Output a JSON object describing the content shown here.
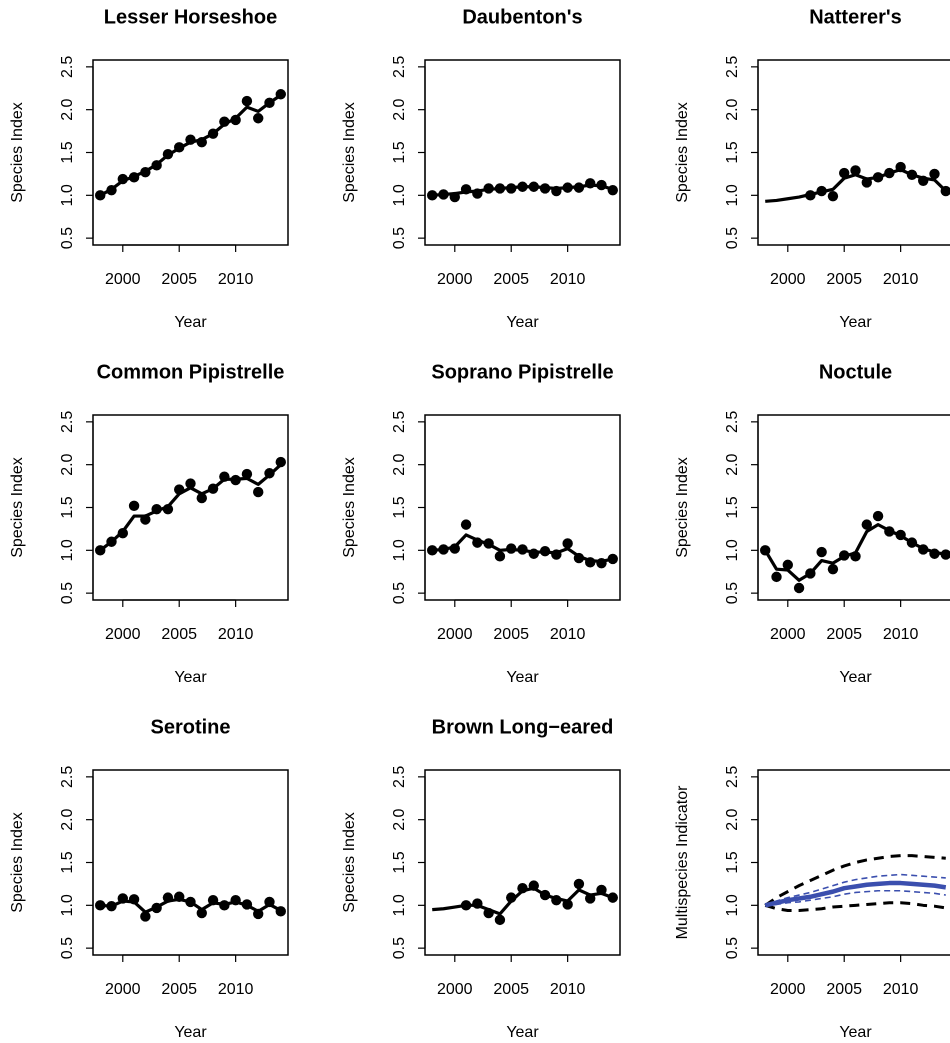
{
  "chart_data": [
    {
      "type": "line",
      "title": "Lesser Horseshoe",
      "x_label": "Year",
      "y_label": "Species Index",
      "x": [
        1998,
        1999,
        2000,
        2001,
        2002,
        2003,
        2004,
        2005,
        2006,
        2007,
        2008,
        2009,
        2010,
        2011,
        2012,
        2013,
        2014
      ],
      "xlim": [
        1997.36,
        2014.64
      ],
      "xticks": [
        2000,
        2005,
        2010
      ],
      "ylim": [
        0.42,
        2.58
      ],
      "yticks": [
        0.5,
        {
          "value": 1,
          "label": "1.0"
        },
        1.5,
        {
          "value": 2,
          "label": "2.0"
        },
        2.5
      ],
      "series": [
        {
          "style": "points",
          "color": "#000000",
          "values": [
            1.0,
            1.06,
            1.19,
            1.21,
            1.27,
            1.35,
            1.48,
            1.56,
            1.65,
            1.62,
            1.72,
            1.86,
            1.88,
            2.1,
            1.9,
            2.08,
            2.18
          ]
        },
        {
          "style": "line",
          "color": "#000000",
          "values": [
            1.0,
            1.07,
            1.17,
            1.22,
            1.28,
            1.36,
            1.47,
            1.55,
            1.62,
            1.65,
            1.72,
            1.83,
            1.9,
            2.03,
            1.98,
            2.08,
            2.17
          ]
        }
      ]
    },
    {
      "type": "line",
      "title": "Daubenton's",
      "x_label": "Year",
      "y_label": "Species Index",
      "x": [
        1998,
        1999,
        2000,
        2001,
        2002,
        2003,
        2004,
        2005,
        2006,
        2007,
        2008,
        2009,
        2010,
        2011,
        2012,
        2013,
        2014
      ],
      "xlim": [
        1997.36,
        2014.64
      ],
      "xticks": [
        2000,
        2005,
        2010
      ],
      "ylim": [
        0.42,
        2.58
      ],
      "yticks": [
        0.5,
        {
          "value": 1,
          "label": "1.0"
        },
        1.5,
        {
          "value": 2,
          "label": "2.0"
        },
        2.5
      ],
      "series": [
        {
          "style": "points",
          "color": "#000000",
          "values": [
            1.0,
            1.01,
            0.98,
            1.07,
            1.02,
            1.08,
            1.08,
            1.08,
            1.1,
            1.1,
            1.08,
            1.05,
            1.09,
            1.09,
            1.14,
            1.12,
            1.06
          ]
        },
        {
          "style": "line",
          "color": "#000000",
          "values": [
            1.0,
            1.01,
            1.02,
            1.04,
            1.05,
            1.07,
            1.08,
            1.09,
            1.1,
            1.1,
            1.09,
            1.08,
            1.09,
            1.1,
            1.12,
            1.11,
            1.07
          ]
        }
      ]
    },
    {
      "type": "line",
      "title": "Natterer's",
      "x_label": "Year",
      "y_label": "Species Index",
      "x": [
        1998,
        1999,
        2000,
        2001,
        2002,
        2003,
        2004,
        2005,
        2006,
        2007,
        2008,
        2009,
        2010,
        2011,
        2012,
        2013,
        2014
      ],
      "xlim": [
        1997.36,
        2014.64
      ],
      "xticks": [
        2000,
        2005,
        2010
      ],
      "ylim": [
        0.42,
        2.58
      ],
      "yticks": [
        0.5,
        {
          "value": 1,
          "label": "1.0"
        },
        1.5,
        {
          "value": 2,
          "label": "2.0"
        },
        2.5
      ],
      "series": [
        {
          "style": "points",
          "color": "#000000",
          "values": [
            null,
            null,
            null,
            null,
            1.0,
            1.05,
            0.99,
            1.26,
            1.29,
            1.15,
            1.21,
            1.26,
            1.33,
            1.24,
            1.17,
            1.25,
            1.05
          ]
        },
        {
          "style": "line",
          "color": "#000000",
          "values": [
            0.93,
            0.94,
            0.96,
            0.98,
            1.01,
            1.04,
            1.07,
            1.2,
            1.24,
            1.19,
            1.21,
            1.26,
            1.3,
            1.24,
            1.2,
            1.18,
            1.05
          ]
        }
      ]
    },
    {
      "type": "line",
      "title": "Common Pipistrelle",
      "x_label": "Year",
      "y_label": "Species Index",
      "x": [
        1998,
        1999,
        2000,
        2001,
        2002,
        2003,
        2004,
        2005,
        2006,
        2007,
        2008,
        2009,
        2010,
        2011,
        2012,
        2013,
        2014
      ],
      "xlim": [
        1997.36,
        2014.64
      ],
      "xticks": [
        2000,
        2005,
        2010
      ],
      "ylim": [
        0.42,
        2.58
      ],
      "yticks": [
        0.5,
        {
          "value": 1,
          "label": "1.0"
        },
        1.5,
        {
          "value": 2,
          "label": "2.0"
        },
        2.5
      ],
      "series": [
        {
          "style": "points",
          "color": "#000000",
          "values": [
            1.0,
            1.1,
            1.2,
            1.52,
            1.36,
            1.48,
            1.48,
            1.71,
            1.78,
            1.61,
            1.72,
            1.86,
            1.82,
            1.89,
            1.68,
            1.9,
            2.03
          ]
        },
        {
          "style": "line",
          "color": "#000000",
          "values": [
            1.0,
            1.1,
            1.22,
            1.4,
            1.4,
            1.46,
            1.51,
            1.66,
            1.73,
            1.66,
            1.72,
            1.83,
            1.83,
            1.84,
            1.77,
            1.88,
            2.0
          ]
        }
      ]
    },
    {
      "type": "line",
      "title": "Soprano Pipistrelle",
      "x_label": "Year",
      "y_label": "Species Index",
      "x": [
        1998,
        1999,
        2000,
        2001,
        2002,
        2003,
        2004,
        2005,
        2006,
        2007,
        2008,
        2009,
        2010,
        2011,
        2012,
        2013,
        2014
      ],
      "xlim": [
        1997.36,
        2014.64
      ],
      "xticks": [
        2000,
        2005,
        2010
      ],
      "ylim": [
        0.42,
        2.58
      ],
      "yticks": [
        0.5,
        {
          "value": 1,
          "label": "1.0"
        },
        1.5,
        {
          "value": 2,
          "label": "2.0"
        },
        2.5
      ],
      "series": [
        {
          "style": "points",
          "color": "#000000",
          "values": [
            1.0,
            1.01,
            1.02,
            1.3,
            1.09,
            1.08,
            0.93,
            1.02,
            1.01,
            0.96,
            0.99,
            0.95,
            1.08,
            0.91,
            0.86,
            0.85,
            0.9
          ]
        },
        {
          "style": "line",
          "color": "#000000",
          "values": [
            1.0,
            1.01,
            1.04,
            1.18,
            1.12,
            1.07,
            1.0,
            1.01,
            1.0,
            0.98,
            0.98,
            0.97,
            1.02,
            0.93,
            0.88,
            0.87,
            0.9
          ]
        }
      ]
    },
    {
      "type": "line",
      "title": "Noctule",
      "x_label": "Year",
      "y_label": "Species Index",
      "x": [
        1998,
        1999,
        2000,
        2001,
        2002,
        2003,
        2004,
        2005,
        2006,
        2007,
        2008,
        2009,
        2010,
        2011,
        2012,
        2013,
        2014
      ],
      "xlim": [
        1997.36,
        2014.64
      ],
      "xticks": [
        2000,
        2005,
        2010
      ],
      "ylim": [
        0.42,
        2.58
      ],
      "yticks": [
        0.5,
        {
          "value": 1,
          "label": "1.0"
        },
        1.5,
        {
          "value": 2,
          "label": "2.0"
        },
        2.5
      ],
      "series": [
        {
          "style": "points",
          "color": "#000000",
          "values": [
            1.0,
            0.69,
            0.83,
            0.56,
            0.73,
            0.98,
            0.78,
            0.94,
            0.93,
            1.3,
            1.4,
            1.22,
            1.18,
            1.09,
            1.01,
            0.96,
            0.95
          ]
        },
        {
          "style": "line",
          "color": "#000000",
          "values": [
            1.0,
            0.78,
            0.77,
            0.65,
            0.73,
            0.88,
            0.85,
            0.93,
            0.97,
            1.22,
            1.3,
            1.23,
            1.17,
            1.09,
            1.02,
            0.98,
            0.95
          ]
        }
      ]
    },
    {
      "type": "line",
      "title": "Serotine",
      "x_label": "Year",
      "y_label": "Species Index",
      "x": [
        1998,
        1999,
        2000,
        2001,
        2002,
        2003,
        2004,
        2005,
        2006,
        2007,
        2008,
        2009,
        2010,
        2011,
        2012,
        2013,
        2014
      ],
      "xlim": [
        1997.36,
        2014.64
      ],
      "xticks": [
        2000,
        2005,
        2010
      ],
      "ylim": [
        0.42,
        2.58
      ],
      "yticks": [
        0.5,
        {
          "value": 1,
          "label": "1.0"
        },
        1.5,
        {
          "value": 2,
          "label": "2.0"
        },
        2.5
      ],
      "series": [
        {
          "style": "points",
          "color": "#000000",
          "values": [
            1.0,
            0.99,
            1.08,
            1.07,
            0.87,
            0.97,
            1.09,
            1.1,
            1.04,
            0.91,
            1.06,
            1.0,
            1.06,
            1.01,
            0.9,
            1.04,
            0.93
          ]
        },
        {
          "style": "line",
          "color": "#000000",
          "values": [
            1.0,
            0.99,
            1.05,
            1.04,
            0.92,
            0.98,
            1.05,
            1.07,
            1.04,
            0.95,
            1.03,
            1.01,
            1.04,
            1.0,
            0.93,
            1.01,
            0.94
          ]
        }
      ]
    },
    {
      "type": "line",
      "title": "Brown Long−eared",
      "x_label": "Year",
      "y_label": "Species Index",
      "x": [
        1998,
        1999,
        2000,
        2001,
        2002,
        2003,
        2004,
        2005,
        2006,
        2007,
        2008,
        2009,
        2010,
        2011,
        2012,
        2013,
        2014
      ],
      "xlim": [
        1997.36,
        2014.64
      ],
      "xticks": [
        2000,
        2005,
        2010
      ],
      "ylim": [
        0.42,
        2.58
      ],
      "yticks": [
        0.5,
        {
          "value": 1,
          "label": "1.0"
        },
        1.5,
        {
          "value": 2,
          "label": "2.0"
        },
        2.5
      ],
      "series": [
        {
          "style": "points",
          "color": "#000000",
          "values": [
            null,
            null,
            null,
            1.0,
            1.02,
            0.91,
            0.83,
            1.09,
            1.2,
            1.23,
            1.12,
            1.06,
            1.01,
            1.25,
            1.08,
            1.18,
            1.09
          ]
        },
        {
          "style": "line",
          "color": "#000000",
          "values": [
            0.95,
            0.96,
            0.98,
            1.0,
            1.0,
            0.95,
            0.9,
            1.05,
            1.17,
            1.2,
            1.12,
            1.08,
            1.05,
            1.18,
            1.12,
            1.14,
            1.09
          ]
        }
      ]
    },
    {
      "type": "line",
      "x_label": "Year",
      "y_label": "Multispecies Indicator",
      "x": [
        1998,
        1999,
        2000,
        2001,
        2002,
        2003,
        2004,
        2005,
        2006,
        2007,
        2008,
        2009,
        2010,
        2011,
        2012,
        2013,
        2014
      ],
      "xlim": [
        1997.36,
        2014.64
      ],
      "xticks": [
        2000,
        2005,
        2010
      ],
      "ylim": [
        0.42,
        2.58
      ],
      "yticks": [
        0.5,
        {
          "value": 1,
          "label": "1.0"
        },
        1.5,
        {
          "value": 2,
          "label": "2.0"
        },
        2.5
      ],
      "series": [
        {
          "style": "dashed",
          "color": "#000000",
          "values": [
            1.0,
            1.09,
            1.16,
            1.23,
            1.29,
            1.35,
            1.41,
            1.46,
            1.5,
            1.53,
            1.55,
            1.57,
            1.58,
            1.58,
            1.57,
            1.56,
            1.55
          ]
        },
        {
          "style": "dashed",
          "color": "#000000",
          "values": [
            1.0,
            0.96,
            0.94,
            0.94,
            0.95,
            0.96,
            0.98,
            0.99,
            1.0,
            1.01,
            1.02,
            1.03,
            1.03,
            1.02,
            1.0,
            0.99,
            0.97
          ]
        },
        {
          "style": "dashed-thin",
          "color": "#3b4fae",
          "values": [
            1.0,
            1.05,
            1.09,
            1.12,
            1.15,
            1.19,
            1.23,
            1.27,
            1.3,
            1.32,
            1.34,
            1.35,
            1.36,
            1.35,
            1.34,
            1.33,
            1.32
          ]
        },
        {
          "style": "dashed-thin",
          "color": "#3b4fae",
          "values": [
            1.0,
            1.01,
            1.03,
            1.04,
            1.06,
            1.08,
            1.1,
            1.13,
            1.15,
            1.16,
            1.17,
            1.17,
            1.17,
            1.16,
            1.15,
            1.14,
            1.12
          ]
        },
        {
          "style": "thick",
          "color": "#3b4fae",
          "values": [
            1.0,
            1.03,
            1.06,
            1.08,
            1.1,
            1.13,
            1.16,
            1.2,
            1.22,
            1.24,
            1.25,
            1.26,
            1.26,
            1.25,
            1.24,
            1.23,
            1.21
          ]
        }
      ]
    }
  ]
}
